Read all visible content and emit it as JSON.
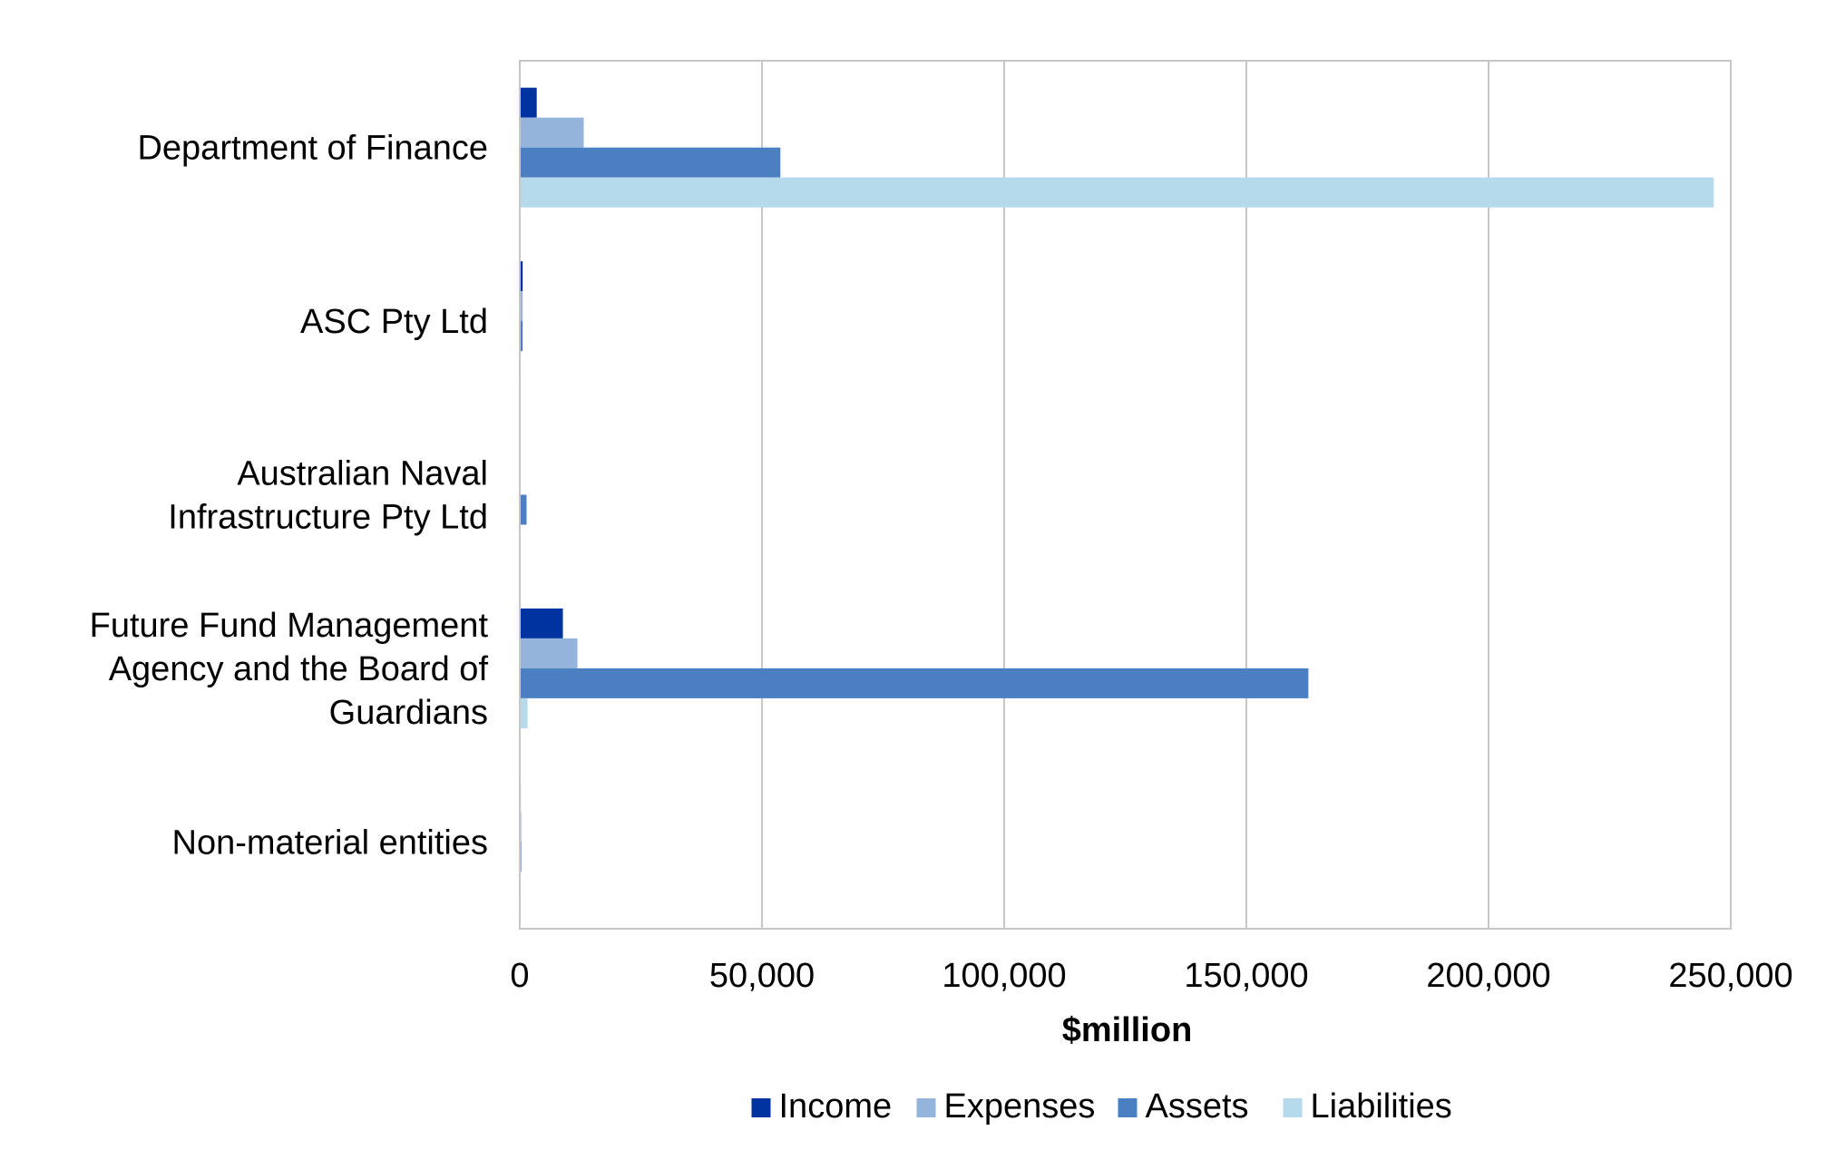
{
  "chart_data": {
    "type": "bar",
    "orientation": "horizontal",
    "categories": [
      "Department of Finance",
      "ASC Pty Ltd",
      "Australian Naval Infrastructure Pty Ltd",
      "Future Fund Management Agency and the Board of Guardians",
      "Non-material entities"
    ],
    "category_lines": [
      [
        "Department of Finance"
      ],
      [
        "ASC Pty Ltd"
      ],
      [
        "Australian Naval",
        "Infrastructure Pty Ltd"
      ],
      [
        "Future Fund Management",
        "Agency and the Board of",
        "Guardians"
      ],
      [
        "Non-material entities"
      ]
    ],
    "series": [
      {
        "name": "Income",
        "color": "#0033a0",
        "values": [
          3500,
          600,
          100,
          8900,
          200
        ]
      },
      {
        "name": "Expenses",
        "color": "#94b4dc",
        "values": [
          13200,
          600,
          100,
          11900,
          300
        ]
      },
      {
        "name": "Assets",
        "color": "#4a7fc1",
        "values": [
          53800,
          600,
          1400,
          162800,
          300
        ]
      },
      {
        "name": "Liabilities",
        "color": "#b4daec",
        "values": [
          246500,
          200,
          100,
          1600,
          200
        ]
      }
    ],
    "xlabel": "$million",
    "xlim": [
      0,
      250000
    ],
    "xticks": [
      0,
      50000,
      100000,
      150000,
      200000,
      250000
    ],
    "xtick_labels": [
      "0",
      "50,000",
      "100,000",
      "150,000",
      "200,000",
      "250,000"
    ],
    "grid": true,
    "legend_position": "bottom"
  }
}
